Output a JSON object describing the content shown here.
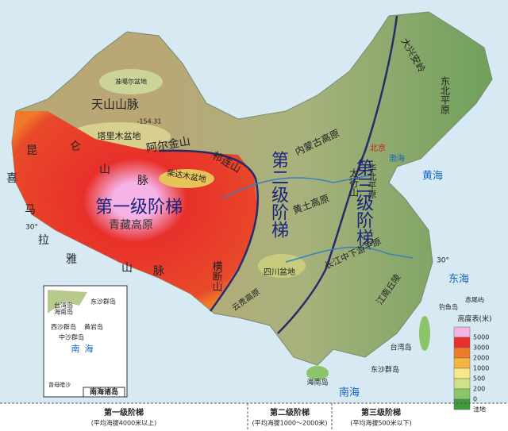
{
  "map_labels": [
    "天山山脉",
    "准噶尔盆地",
    "-154.31",
    "塔里木盆地",
    "昆",
    "仑",
    "山",
    "脉",
    "阿尔金山",
    "祁连山",
    "柴达木盆地",
    "第一级阶梯",
    "青藏高原",
    "喜",
    "马",
    "拉",
    "雅",
    "山",
    "脉",
    "横断山",
    "内蒙古高原",
    "大兴安岭",
    "东北平原",
    "太行山",
    "北京",
    "华北平原",
    "黄土高原",
    "第二级阶梯",
    "第三级阶梯",
    "四川盆地",
    "长江中下游平原",
    "江南丘陵",
    "云贵高原",
    "渤海",
    "黄海",
    "东海",
    "钓鱼岛",
    "赤尾屿",
    "台湾岛",
    "东沙群岛",
    "海南岛",
    "南海",
    "30°",
    "30°"
  ],
  "inset": {
    "title": "南海诸岛",
    "labels": [
      "台湾岛",
      "东沙群岛",
      "海南岛",
      "西沙群岛",
      "黄岩岛",
      "中沙群岛",
      "南",
      "海",
      "曾母暗沙"
    ]
  },
  "legend": {
    "title": "高度表(米)",
    "levels": [
      5000,
      3000,
      2000,
      1000,
      500,
      200,
      0
    ],
    "depression": "洼地",
    "colors": [
      "#f5b3e6",
      "#e8302a",
      "#f07a2a",
      "#f4b641",
      "#f6e888",
      "#cfe28a",
      "#8cc46a",
      "#3f9a3f"
    ]
  },
  "steps": [
    {
      "name": "第一级阶梯",
      "note": "(平均海拔4000米以上)"
    },
    {
      "name": "第二级阶梯",
      "note": "(平均海拔1000～2000米)"
    },
    {
      "name": "第三级阶梯",
      "note": "(平均海拔500米以下)"
    }
  ]
}
